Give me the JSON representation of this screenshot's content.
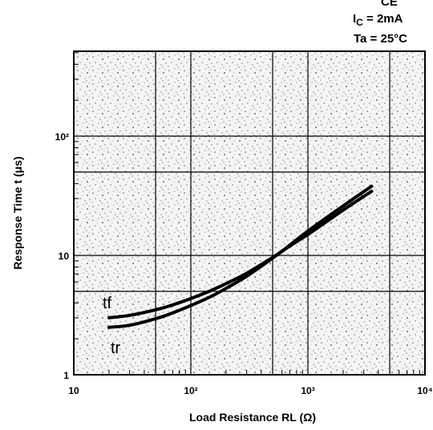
{
  "conditions": {
    "top_partial": "CE",
    "ic_prefix": "I",
    "ic_sub": "C",
    "ic_rest": " = 2mA",
    "ta": "Ta = 25°C"
  },
  "chart_data": {
    "type": "line",
    "title": "",
    "xlabel": "Load Resistance RL (Ω)",
    "ylabel": "Response Time t (μs)",
    "x_scale": "log",
    "y_scale": "log",
    "xlim": [
      10,
      10000
    ],
    "ylim": [
      1,
      500
    ],
    "grid": true,
    "x_ticks": [
      {
        "value": 10,
        "label": "10"
      },
      {
        "value": 100,
        "label": "10²"
      },
      {
        "value": 1000,
        "label": "10³"
      },
      {
        "value": 10000,
        "label": "10⁴"
      }
    ],
    "y_ticks": [
      {
        "value": 1,
        "label": "1"
      },
      {
        "value": 10,
        "label": "10"
      },
      {
        "value": 100,
        "label": "10²"
      }
    ],
    "series": [
      {
        "name": "tf",
        "x": [
          20,
          30,
          50,
          70,
          100,
          150,
          200,
          300,
          500,
          700,
          1000,
          2000,
          3500
        ],
        "y": [
          3.0,
          3.15,
          3.5,
          3.85,
          4.35,
          5.1,
          5.8,
          7.1,
          9.6,
          12.0,
          15.0,
          24.0,
          34.5
        ]
      },
      {
        "name": "tr",
        "x": [
          20,
          30,
          50,
          70,
          100,
          150,
          200,
          300,
          500,
          700,
          1000,
          2000,
          3500
        ],
        "y": [
          2.5,
          2.6,
          2.95,
          3.3,
          3.8,
          4.55,
          5.3,
          6.7,
          9.5,
          12.2,
          16.0,
          26.0,
          38.0
        ]
      }
    ]
  }
}
